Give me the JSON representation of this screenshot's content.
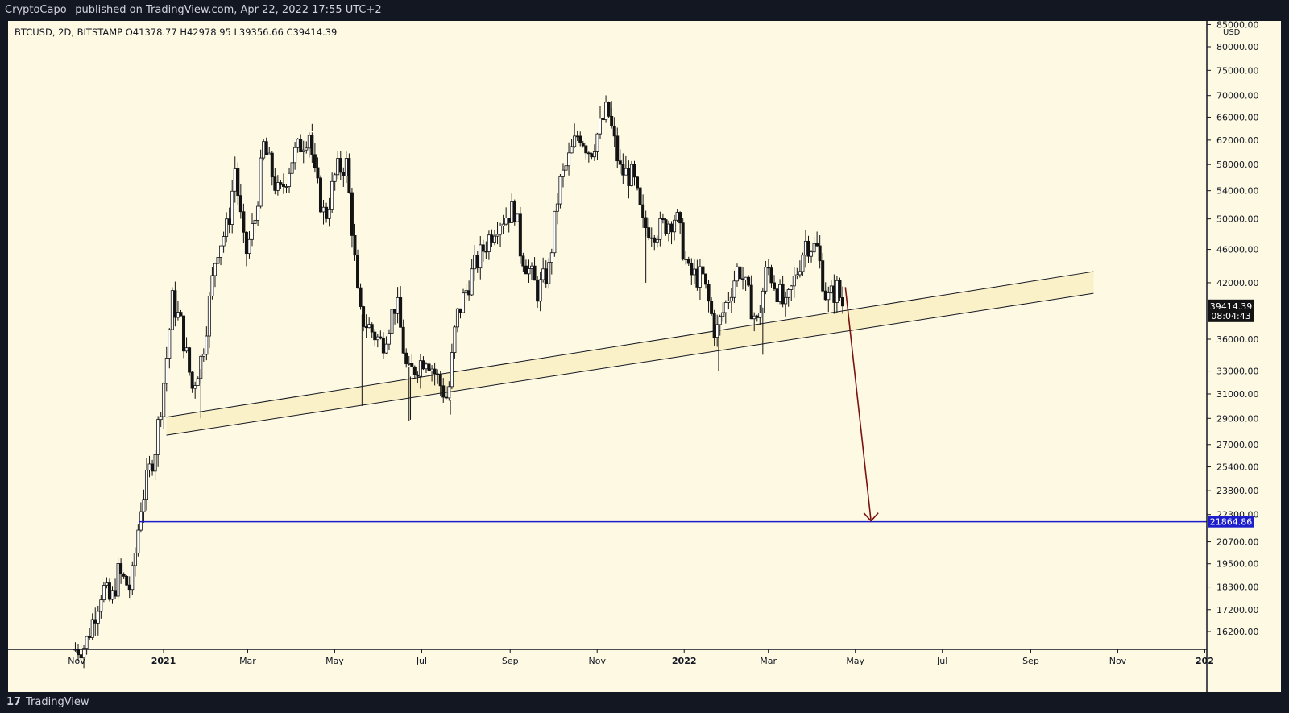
{
  "header": {
    "published_line": "CryptoCapo_  published on TradingView.com, Apr 22, 2022 17:55 UTC+2"
  },
  "footer": {
    "logo": "17",
    "brand": "TradingView"
  },
  "colors": {
    "background": "#fdf9e3",
    "candle_up": "#ffffff",
    "candle_down": "#131313",
    "support_band": "#fbf1c8",
    "target_line": "#1d1dcc",
    "arrow": "#7a1212"
  },
  "chart_data": {
    "type": "candlestick",
    "symbol_line": "BTCUSD, 2D, BITSTAMP  O41378.77  H42978.95  L39356.66  C39414.39",
    "currency": "USD",
    "y_scale": "log",
    "ylim": [
      15400,
      85000
    ],
    "y_ticks": [
      "85000.00",
      "80000.00",
      "75000.00",
      "70000.00",
      "66000.00",
      "62000.00",
      "58000.00",
      "54000.00",
      "50000.00",
      "46000.00",
      "42000.00",
      "36000.00",
      "33000.00",
      "31000.00",
      "29000.00",
      "27000.00",
      "25400.00",
      "23800.00",
      "22300.00",
      "20700.00",
      "19500.00",
      "18300.00",
      "17200.00",
      "16200.00"
    ],
    "y_tick_values": [
      85000,
      80000,
      75000,
      70000,
      66000,
      62000,
      58000,
      54000,
      50000,
      46000,
      42000,
      36000,
      33000,
      31000,
      29000,
      27000,
      25400,
      23800,
      22300,
      20700,
      19500,
      18300,
      17200,
      16200
    ],
    "x_ticks": [
      {
        "label": "Nov",
        "date": "2020-11-01",
        "bold": false
      },
      {
        "label": "2021",
        "date": "2021-01-01",
        "bold": true
      },
      {
        "label": "Mar",
        "date": "2021-03-01",
        "bold": false
      },
      {
        "label": "May",
        "date": "2021-05-01",
        "bold": false
      },
      {
        "label": "Jul",
        "date": "2021-07-01",
        "bold": false
      },
      {
        "label": "Sep",
        "date": "2021-09-01",
        "bold": false
      },
      {
        "label": "Nov",
        "date": "2021-11-01",
        "bold": false
      },
      {
        "label": "2022",
        "date": "2022-01-01",
        "bold": true
      },
      {
        "label": "Mar",
        "date": "2022-03-01",
        "bold": false
      },
      {
        "label": "May",
        "date": "2022-05-01",
        "bold": false
      },
      {
        "label": "Jul",
        "date": "2022-07-01",
        "bold": false
      },
      {
        "label": "Sep",
        "date": "2022-09-01",
        "bold": false
      },
      {
        "label": "Nov",
        "date": "2022-11-01",
        "bold": false
      },
      {
        "label": "202",
        "date": "2023-01-01",
        "bold": true
      }
    ],
    "price_path": [
      [
        "2020-10-30",
        15400
      ],
      [
        "2020-11-08",
        15600
      ],
      [
        "2020-11-20",
        18300
      ],
      [
        "2020-11-26",
        17500
      ],
      [
        "2020-12-01",
        19000
      ],
      [
        "2020-12-10",
        18200
      ],
      [
        "2020-12-17",
        22900
      ],
      [
        "2020-12-27",
        26800
      ],
      [
        "2021-01-03",
        33000
      ],
      [
        "2021-01-08",
        40000
      ],
      [
        "2021-01-14",
        37500
      ],
      [
        "2021-01-22",
        31500
      ],
      [
        "2021-01-29",
        34500
      ],
      [
        "2021-02-08",
        46000
      ],
      [
        "2021-02-16",
        49000
      ],
      [
        "2021-02-21",
        57500
      ],
      [
        "2021-02-28",
        45000
      ],
      [
        "2021-03-07",
        50000
      ],
      [
        "2021-03-13",
        61000
      ],
      [
        "2021-03-24",
        53000
      ],
      [
        "2021-04-02",
        59000
      ],
      [
        "2021-04-14",
        63500
      ],
      [
        "2021-04-18",
        56000
      ],
      [
        "2021-04-25",
        50000
      ],
      [
        "2021-05-03",
        57000
      ],
      [
        "2021-05-10",
        58000
      ],
      [
        "2021-05-14",
        49000
      ],
      [
        "2021-05-19",
        38500
      ],
      [
        "2021-05-27",
        37000
      ],
      [
        "2021-06-04",
        35500
      ],
      [
        "2021-06-14",
        40000
      ],
      [
        "2021-06-22",
        32500
      ],
      [
        "2021-07-05",
        34500
      ],
      [
        "2021-07-20",
        30500
      ],
      [
        "2021-07-26",
        38000
      ],
      [
        "2021-08-07",
        43500
      ],
      [
        "2021-08-23",
        49500
      ],
      [
        "2021-09-06",
        51500
      ],
      [
        "2021-09-08",
        46500
      ],
      [
        "2021-09-21",
        41000
      ],
      [
        "2021-09-29",
        43500
      ],
      [
        "2021-10-06",
        54500
      ],
      [
        "2021-10-20",
        63500
      ],
      [
        "2021-10-28",
        60000
      ],
      [
        "2021-11-09",
        67500
      ],
      [
        "2021-11-18",
        57000
      ],
      [
        "2021-11-27",
        56000
      ],
      [
        "2021-12-04",
        49000
      ],
      [
        "2021-12-15",
        48500
      ],
      [
        "2021-12-27",
        50500
      ],
      [
        "2022-01-05",
        43000
      ],
      [
        "2022-01-15",
        42500
      ],
      [
        "2022-01-24",
        36500
      ],
      [
        "2022-02-09",
        44000
      ],
      [
        "2022-02-22",
        37500
      ],
      [
        "2022-03-01",
        44000
      ],
      [
        "2022-03-14",
        39000
      ],
      [
        "2022-03-28",
        47000
      ],
      [
        "2022-04-05",
        46000
      ],
      [
        "2022-04-12",
        40000
      ],
      [
        "2022-04-20",
        41500
      ],
      [
        "2022-04-22",
        39414.39
      ]
    ],
    "wick_extremes": [
      {
        "date": "2021-01-26",
        "low": 29000
      },
      {
        "date": "2021-05-19",
        "low": 30000
      },
      {
        "date": "2021-06-22",
        "low": 28900
      },
      {
        "date": "2021-07-20",
        "low": 29300
      },
      {
        "date": "2021-06-21",
        "low": 28800
      },
      {
        "date": "2021-11-10",
        "high": 69000
      },
      {
        "date": "2021-12-04",
        "low": 42000
      },
      {
        "date": "2022-01-24",
        "low": 33000
      },
      {
        "date": "2022-02-24",
        "low": 34500
      },
      {
        "date": "2021-04-14",
        "high": 64800
      }
    ],
    "support_channel": {
      "upper": [
        [
          "2021-01-03",
          29100
        ],
        [
          "2022-10-15",
          43300
        ]
      ],
      "lower": [
        [
          "2021-01-03",
          27700
        ],
        [
          "2022-10-15",
          40800
        ]
      ]
    },
    "target_line": {
      "value": 21864.86,
      "start": "2020-12-15"
    },
    "arrow": {
      "from": [
        "2022-04-24",
        41500
      ],
      "to": [
        "2022-05-12",
        22000
      ]
    },
    "last_price": {
      "value": "39414.39",
      "countdown": "08:04:43"
    },
    "target_label": "21864.86"
  }
}
